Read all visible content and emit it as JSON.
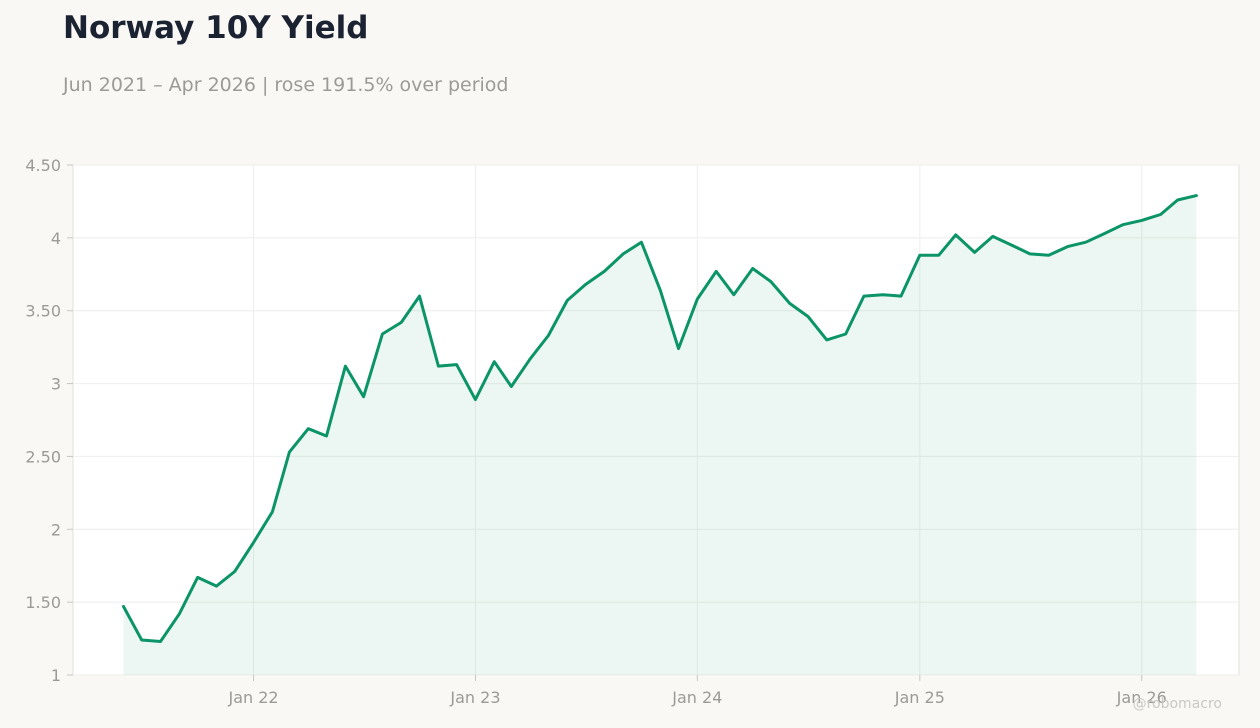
{
  "header": {
    "title": "Norway 10Y Yield",
    "subtitle": "Jun 2021 – Apr 2026 | rose 191.5% over period"
  },
  "watermark": "@robomacro",
  "colors": {
    "line": "#0b9467",
    "fill": "#0b9467",
    "background": "#f9f8f5",
    "plot_background": "#ffffff",
    "grid": "#eeeeec",
    "tick_text": "#9b9a96",
    "title": "#1b2333"
  },
  "chart_data": {
    "type": "area",
    "title": "Norway 10Y Yield",
    "subtitle": "Jun 2021 – Apr 2026 | rose 191.5% over period",
    "xlabel": "",
    "ylabel": "",
    "ylim": [
      1,
      4.5
    ],
    "xlim": [
      "2021-03-10",
      "2026-06-10"
    ],
    "grid": true,
    "legend": "none",
    "y_ticks": [
      1,
      1.5,
      2,
      2.5,
      3,
      3.5,
      4,
      4.5
    ],
    "y_tick_labels": [
      "1",
      "1.50",
      "2",
      "2.50",
      "3",
      "3.50",
      "4",
      "4.50"
    ],
    "x_ticks": [
      "2022-01-01",
      "2023-01-01",
      "2024-01-01",
      "2025-01-01",
      "2026-01-01"
    ],
    "x_tick_labels": [
      "Jan 22",
      "Jan 23",
      "Jan 24",
      "Jan 25",
      "Jan 26"
    ],
    "series": [
      {
        "dates": [
          "2021-06-01",
          "2021-07-01",
          "2021-08-01",
          "2021-09-01",
          "2021-10-01",
          "2021-11-01",
          "2021-12-01",
          "2022-01-01",
          "2022-02-01",
          "2022-03-01",
          "2022-04-01",
          "2022-05-01",
          "2022-06-01",
          "2022-07-01",
          "2022-08-01",
          "2022-09-01",
          "2022-10-01",
          "2022-11-01",
          "2022-12-01",
          "2023-01-01",
          "2023-02-01",
          "2023-03-01",
          "2023-04-01",
          "2023-05-01",
          "2023-06-01",
          "2023-07-01",
          "2023-08-01",
          "2023-09-01",
          "2023-10-01",
          "2023-11-01",
          "2023-12-01",
          "2024-01-01",
          "2024-02-01",
          "2024-03-01",
          "2024-04-01",
          "2024-05-01",
          "2024-06-01",
          "2024-07-01",
          "2024-08-01",
          "2024-09-01",
          "2024-10-01",
          "2024-11-01",
          "2024-12-01",
          "2025-01-01",
          "2025-02-01",
          "2025-03-01",
          "2025-04-01",
          "2025-05-01",
          "2025-06-01",
          "2025-07-01",
          "2025-08-01",
          "2025-09-01",
          "2025-10-01",
          "2025-11-01",
          "2025-12-01",
          "2026-01-01",
          "2026-02-01",
          "2026-03-01",
          "2026-04-01"
        ],
        "values": [
          1.47,
          1.24,
          1.23,
          1.42,
          1.67,
          1.61,
          1.71,
          1.91,
          2.12,
          2.53,
          2.69,
          2.64,
          3.12,
          2.91,
          3.34,
          3.42,
          3.6,
          3.12,
          3.13,
          2.89,
          3.15,
          2.98,
          3.17,
          3.33,
          3.57,
          3.68,
          3.77,
          3.89,
          3.97,
          3.64,
          3.24,
          3.58,
          3.77,
          3.61,
          3.79,
          3.7,
          3.55,
          3.46,
          3.3,
          3.34,
          3.6,
          3.61,
          3.6,
          3.88,
          3.88,
          4.02,
          3.9,
          4.01,
          3.95,
          3.89,
          3.88,
          3.94,
          3.97,
          4.03,
          4.09,
          4.12,
          4.16,
          4.26,
          4.29
        ]
      }
    ]
  }
}
